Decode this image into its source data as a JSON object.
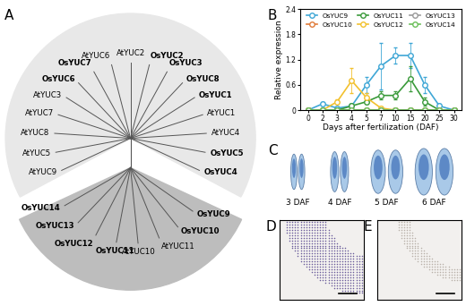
{
  "panel_labels": [
    "A",
    "B",
    "C",
    "D",
    "E"
  ],
  "tree": {
    "clades": [
      {
        "leaves": [
          {
            "name": "AtYUC9",
            "bold": false
          },
          {
            "name": "AtYUC5",
            "bold": false
          },
          {
            "name": "AtYUC8",
            "bold": false
          },
          {
            "name": "AtYUC7",
            "bold": false
          },
          {
            "name": "AtYUC3",
            "bold": false
          },
          {
            "name": "OsYUC6",
            "bold": true
          },
          {
            "name": "OsYUC7",
            "bold": true
          },
          {
            "name": "AtYUC6",
            "bold": false
          },
          {
            "name": "AtYUC2",
            "bold": false
          },
          {
            "name": "OsYUC2",
            "bold": true
          },
          {
            "name": "OsYUC3",
            "bold": true
          },
          {
            "name": "OsYUC8",
            "bold": true
          },
          {
            "name": "OsYUC1",
            "bold": true
          },
          {
            "name": "AtYUC1",
            "bold": false
          },
          {
            "name": "AtYUC4",
            "bold": false
          },
          {
            "name": "OsYUC5",
            "bold": true
          },
          {
            "name": "OsYUC4",
            "bold": true
          }
        ]
      },
      {
        "leaves": [
          {
            "name": "OsYUC9",
            "bold": true
          },
          {
            "name": "OsYUC10",
            "bold": true
          },
          {
            "name": "AtYUC11",
            "bold": false
          },
          {
            "name": "AtYUC10",
            "bold": false
          },
          {
            "name": "OsYUC11",
            "bold": true
          },
          {
            "name": "OsYUC12",
            "bold": true
          },
          {
            "name": "OsYUC13",
            "bold": true
          },
          {
            "name": "OsYUC14",
            "bold": true
          }
        ]
      }
    ]
  },
  "chart_data": {
    "type": "line",
    "categories": [
      0,
      2,
      3,
      4,
      5,
      7,
      10,
      15,
      20,
      25,
      30
    ],
    "xlabel": "Days after fertilization (DAF)",
    "ylabel": "Relative expression",
    "ylim": [
      0,
      2.4
    ],
    "yticks": [
      0,
      0.6,
      1.2,
      1.8,
      2.4
    ],
    "grid": false,
    "legend": "upper center",
    "marker": "o",
    "series": [
      {
        "name": "OsYUC9",
        "color": "#3fa7d6",
        "values": [
          0,
          0.15,
          0.05,
          0.1,
          0.6,
          1.05,
          1.3,
          1.3,
          0.6,
          0.1,
          0
        ],
        "errors": [
          0,
          0.05,
          0.03,
          0.05,
          0.2,
          0.55,
          0.2,
          0.3,
          0.2,
          0.05,
          0
        ]
      },
      {
        "name": "OsYUC10",
        "color": "#e07b39",
        "values": [
          0,
          0,
          0,
          0,
          0,
          0,
          0,
          0,
          0,
          0,
          0
        ],
        "errors": [
          0,
          0,
          0,
          0,
          0,
          0,
          0,
          0,
          0,
          0,
          0
        ]
      },
      {
        "name": "OsYUC11",
        "color": "#3a9a3a",
        "values": [
          0,
          0,
          0,
          0.1,
          0.2,
          0.35,
          0.35,
          0.75,
          0.2,
          0,
          0
        ],
        "errors": [
          0,
          0,
          0,
          0.05,
          0.05,
          0.1,
          0.1,
          0.3,
          0.1,
          0,
          0
        ]
      },
      {
        "name": "OsYUC12",
        "color": "#f2c12e",
        "values": [
          0,
          0,
          0.2,
          0.7,
          0.3,
          0.05,
          0,
          0,
          0,
          0,
          0
        ],
        "errors": [
          0,
          0,
          0.05,
          0.3,
          0.1,
          0.03,
          0,
          0,
          0,
          0,
          0
        ]
      },
      {
        "name": "OsYUC13",
        "color": "#999999",
        "values": [
          0,
          0,
          0,
          0,
          0,
          0,
          0,
          0,
          0,
          0,
          0
        ],
        "errors": [
          0,
          0,
          0,
          0,
          0,
          0,
          0,
          0,
          0,
          0,
          0
        ]
      },
      {
        "name": "OsYUC14",
        "color": "#6bbf59",
        "values": [
          0,
          0,
          0,
          0,
          0,
          0,
          0,
          0,
          0,
          0,
          0
        ],
        "errors": [
          0,
          0,
          0,
          0,
          0,
          0,
          0,
          0,
          0,
          0,
          0
        ]
      }
    ]
  },
  "images": {
    "C": {
      "labels": [
        "3 DAF",
        "4 DAF",
        "5 DAF",
        "6 DAF"
      ]
    }
  }
}
